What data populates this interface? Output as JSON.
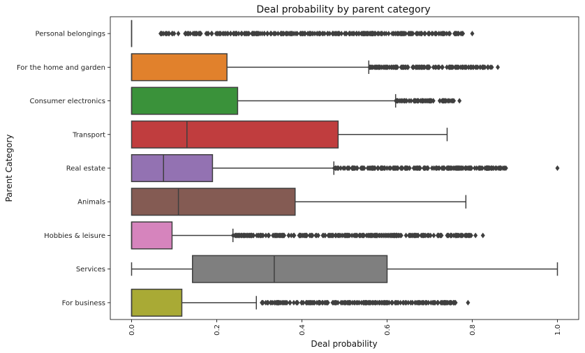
{
  "chart_data": {
    "type": "box",
    "orientation": "horizontal",
    "title": "Deal probability by parent category",
    "xlabel": "Deal probability",
    "ylabel": "Parent Category",
    "xlim": [
      -0.05,
      1.05
    ],
    "xticks": [
      0.0,
      0.2,
      0.4,
      0.6,
      0.8,
      1.0
    ],
    "xtick_labels": [
      "0.0",
      "0.2",
      "0.4",
      "0.6",
      "0.8",
      "1.0"
    ],
    "grid": false,
    "categories": [
      {
        "name": "Personal belongings",
        "color": "#3a75af",
        "q1": 0.0,
        "median": 0.0,
        "q3": 0.0,
        "whisker_low": 0.0,
        "whisker_high": 0.0,
        "outlier_range": [
          0.065,
          0.78
        ],
        "extra_outliers": [
          0.8
        ]
      },
      {
        "name": "For the home and garden",
        "color": "#e1812c",
        "q1": 0.0,
        "median": 0.0,
        "q3": 0.224,
        "whisker_low": 0.0,
        "whisker_high": 0.557,
        "outlier_range": [
          0.557,
          0.848
        ],
        "extra_outliers": [
          0.86
        ]
      },
      {
        "name": "Consumer electronics",
        "color": "#3a923a",
        "q1": 0.0,
        "median": 0.0,
        "q3": 0.249,
        "whisker_low": 0.0,
        "whisker_high": 0.62,
        "outlier_range": [
          0.62,
          0.76
        ],
        "extra_outliers": [
          0.77
        ]
      },
      {
        "name": "Transport",
        "color": "#c03d3e",
        "q1": 0.0,
        "median": 0.13,
        "q3": 0.485,
        "whisker_low": 0.0,
        "whisker_high": 0.741,
        "outlier_range": null,
        "extra_outliers": []
      },
      {
        "name": "Real estate",
        "color": "#9372b2",
        "q1": 0.0,
        "median": 0.075,
        "q3": 0.19,
        "whisker_low": 0.0,
        "whisker_high": 0.475,
        "outlier_range": [
          0.475,
          0.88
        ],
        "extra_outliers": [
          1.0
        ]
      },
      {
        "name": "Animals",
        "color": "#845b53",
        "q1": 0.0,
        "median": 0.11,
        "q3": 0.384,
        "whisker_low": 0.0,
        "whisker_high": 0.785,
        "outlier_range": null,
        "extra_outliers": []
      },
      {
        "name": "Hobbies & leisure",
        "color": "#d684bd",
        "q1": 0.0,
        "median": 0.0,
        "q3": 0.095,
        "whisker_low": 0.0,
        "whisker_high": 0.238,
        "outlier_range": [
          0.238,
          0.81
        ],
        "extra_outliers": [
          0.825
        ]
      },
      {
        "name": "Services",
        "color": "#7f7f7f",
        "q1": 0.143,
        "median": 0.335,
        "q3": 0.6,
        "whisker_low": 0.0,
        "whisker_high": 1.0,
        "outlier_range": null,
        "extra_outliers": []
      },
      {
        "name": "For business",
        "color": "#a9aa35",
        "q1": 0.0,
        "median": 0.0,
        "q3": 0.118,
        "whisker_low": 0.0,
        "whisker_high": 0.293,
        "outlier_range": [
          0.305,
          0.775
        ],
        "extra_outliers": [
          0.79
        ]
      }
    ]
  }
}
